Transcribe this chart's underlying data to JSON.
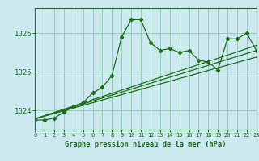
{
  "title": "Graphe pression niveau de la mer (hPa)",
  "bg_color": "#cce9f0",
  "line_color": "#1a6e1a",
  "grid_color": "#99ccbb",
  "x_min": 0,
  "x_max": 23,
  "y_min": 1023.5,
  "y_max": 1026.65,
  "yticks": [
    1024,
    1025,
    1026
  ],
  "xticks": [
    0,
    1,
    2,
    3,
    4,
    5,
    6,
    7,
    8,
    9,
    10,
    11,
    12,
    13,
    14,
    15,
    16,
    17,
    18,
    19,
    20,
    21,
    22,
    23
  ],
  "series1_x": [
    0,
    1,
    2,
    3,
    4,
    5,
    6,
    7,
    8,
    9,
    10,
    11,
    12,
    13,
    14,
    15,
    16,
    17,
    18,
    19,
    20,
    21,
    22,
    23
  ],
  "series1_y": [
    1023.75,
    1023.75,
    1023.8,
    1023.95,
    1024.1,
    1024.2,
    1024.45,
    1024.6,
    1024.9,
    1025.9,
    1026.35,
    1026.35,
    1025.75,
    1025.55,
    1025.6,
    1025.5,
    1025.55,
    1025.3,
    1025.25,
    1025.05,
    1025.85,
    1025.85,
    1026.0,
    1025.55
  ],
  "trend1_x": [
    0,
    23
  ],
  "trend1_y": [
    1023.78,
    1025.55
  ],
  "trend2_x": [
    0,
    23
  ],
  "trend2_y": [
    1023.78,
    1025.38
  ],
  "trend3_x": [
    0,
    23
  ],
  "trend3_y": [
    1023.78,
    1025.68
  ]
}
